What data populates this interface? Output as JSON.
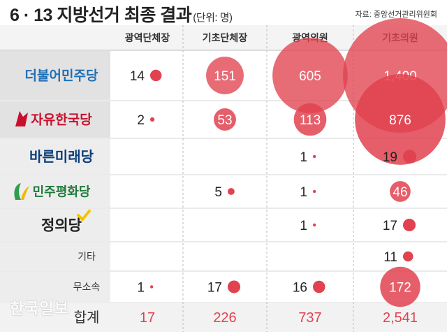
{
  "title": "6 · 13 지방선거 최종 결과",
  "unit": "(단위: 명)",
  "source": "자료: 중앙선거관리위원회",
  "watermark": "한국일보",
  "colors": {
    "bubble": "#e0424f",
    "header_bg": "#f4f4f4",
    "row_bg": "#ededed",
    "total_text": "#e0424f"
  },
  "chart_data": {
    "type": "table",
    "columns": [
      "광역단체장",
      "기초단체장",
      "광역의원",
      "기초의원"
    ],
    "rows": [
      {
        "party": "더불어민주당",
        "values": [
          14,
          151,
          605,
          1400
        ],
        "labels": [
          "14",
          "151",
          "605",
          "1,400"
        ]
      },
      {
        "party": "자유한국당",
        "values": [
          2,
          53,
          113,
          876
        ],
        "labels": [
          "2",
          "53",
          "113",
          "876"
        ]
      },
      {
        "party": "바른미래당",
        "values": [
          null,
          null,
          1,
          19
        ],
        "labels": [
          "",
          "",
          "1",
          "19"
        ]
      },
      {
        "party": "민주평화당",
        "values": [
          null,
          5,
          1,
          46
        ],
        "labels": [
          "",
          "5",
          "1",
          "46"
        ]
      },
      {
        "party": "정의당",
        "values": [
          null,
          null,
          1,
          17
        ],
        "labels": [
          "",
          "",
          "1",
          "17"
        ]
      },
      {
        "party": "기타",
        "values": [
          null,
          null,
          null,
          11
        ],
        "labels": [
          "",
          "",
          "",
          "11"
        ]
      },
      {
        "party": "무소속",
        "values": [
          1,
          17,
          16,
          172
        ],
        "labels": [
          "1",
          "17",
          "16",
          "172"
        ]
      }
    ],
    "total": {
      "label": "합계",
      "values": [
        17,
        226,
        737,
        2541
      ],
      "labels": [
        "17",
        "226",
        "737",
        "2,541"
      ]
    }
  }
}
